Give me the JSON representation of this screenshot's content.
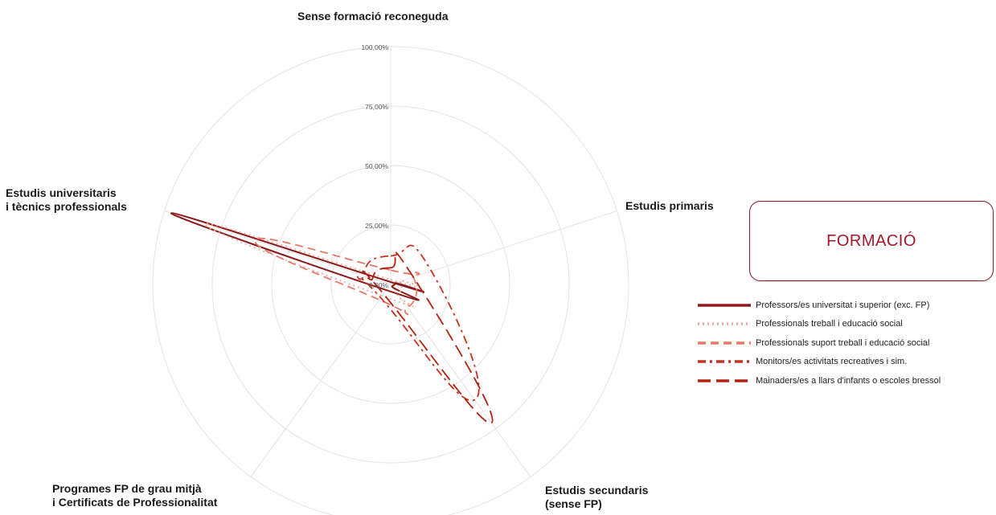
{
  "chart_data": {
    "type": "radar",
    "title": "FORMACIÓ",
    "axes": [
      {
        "key": "sense",
        "label": [
          "Sense formació reconeguda"
        ]
      },
      {
        "key": "primaris",
        "label": [
          "Estudis primaris"
        ]
      },
      {
        "key": "secundaris",
        "label": [
          "Estudis secundaris",
          "(sense FP)"
        ]
      },
      {
        "key": "fp",
        "label": [
          "Programes FP de grau mitjà",
          "i Certificats de Professionalitat"
        ]
      },
      {
        "key": "universitaris",
        "label": [
          "Estudis universitaris",
          "i tècnics professionals"
        ]
      }
    ],
    "ticks": [
      "0,00%",
      "25,00%",
      "50,00%",
      "75,00%",
      "100,00%"
    ],
    "rmax": 100,
    "grid": true,
    "legend_position": "right",
    "series": [
      {
        "name": "Professors/es universitat i superior (exc. FP)",
        "color": "#8b1a1a",
        "dash": "solid",
        "values": [
          1,
          2,
          1,
          3,
          97
        ]
      },
      {
        "name": "Professionals treball i educació social",
        "color": "#f2a8a0",
        "dash": "dotted",
        "values": [
          2,
          4,
          5,
          6,
          82
        ]
      },
      {
        "name": "Professionals suport treball i educació social",
        "color": "#e47a66",
        "dash": "dashed",
        "values": [
          6,
          10,
          12,
          8,
          60
        ]
      },
      {
        "name": "Monitors/es activitats recreatives i sim.",
        "color": "#c8301e",
        "dash": "dashdot",
        "values": [
          12,
          18,
          60,
          7,
          12
        ]
      },
      {
        "name": "Mainaders/es a llars d'infants o escoles bressol",
        "color": "#b2200f",
        "dash": "longdash",
        "values": [
          7,
          10,
          72,
          5,
          8
        ]
      }
    ]
  }
}
